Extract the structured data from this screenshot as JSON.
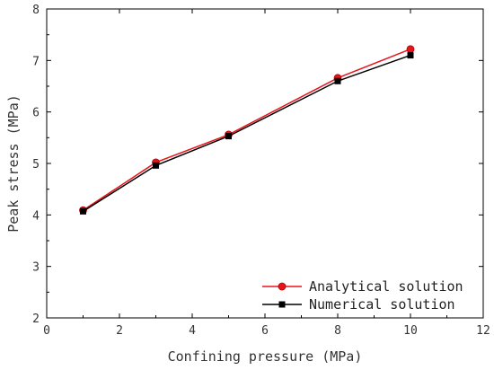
{
  "chart_data": {
    "type": "line",
    "xlabel": "Confining pressure (MPa)",
    "ylabel": "Peak stress (MPa)",
    "xlim": [
      0,
      12
    ],
    "ylim": [
      2,
      8
    ],
    "xticks": [
      "0",
      "2",
      "4",
      "6",
      "8",
      "10",
      "12"
    ],
    "yticks": [
      "2",
      "3",
      "4",
      "5",
      "6",
      "7",
      "8"
    ],
    "grid": false,
    "legend_position": "bottom-right",
    "series": [
      {
        "name": "Analytical solution",
        "color": "#e8141c",
        "marker": "circle",
        "x": [
          1,
          3,
          5,
          8,
          10
        ],
        "y": [
          4.09,
          5.02,
          5.56,
          6.66,
          7.22
        ]
      },
      {
        "name": "Numerical solution",
        "color": "#000000",
        "marker": "square",
        "x": [
          1,
          3,
          5,
          8,
          10
        ],
        "y": [
          4.07,
          4.96,
          5.53,
          6.6,
          7.1
        ]
      }
    ]
  }
}
